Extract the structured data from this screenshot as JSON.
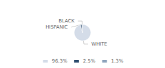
{
  "chart_data": {
    "type": "pie",
    "categories": [
      "WHITE",
      "HISPANIC",
      "BLACK"
    ],
    "values": [
      96.3,
      2.5,
      1.3
    ],
    "value_labels": [
      "96.3%",
      "2.5%",
      "1.3%"
    ],
    "colors": [
      "#d4dce8",
      "#2e4d6e",
      "#8fa4bc"
    ],
    "legend": "bottom"
  }
}
